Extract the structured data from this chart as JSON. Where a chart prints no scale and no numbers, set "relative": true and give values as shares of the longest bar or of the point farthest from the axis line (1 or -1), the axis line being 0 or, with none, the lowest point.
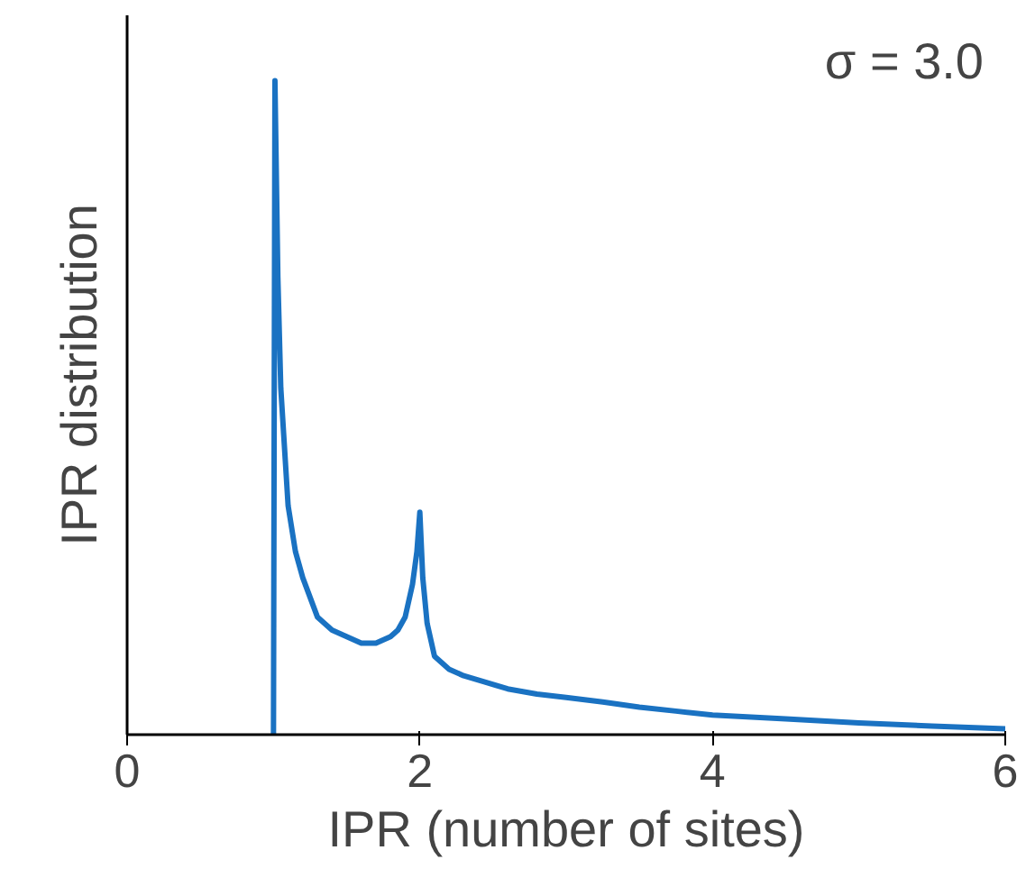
{
  "chart_data": {
    "type": "line",
    "xlabel": "IPR (number of sites)",
    "ylabel": "IPR distribution",
    "relative": true,
    "xlim": [
      0,
      6
    ],
    "xticks": [
      0,
      2,
      4,
      6
    ],
    "grid": false,
    "marker": "none",
    "line_style": "solid",
    "annotations": [
      "σ = 3.0"
    ],
    "series": [
      {
        "color": "#1a72c2",
        "x": [
          1.0,
          1.01,
          1.03,
          1.05,
          1.1,
          1.15,
          1.2,
          1.3,
          1.4,
          1.5,
          1.6,
          1.7,
          1.8,
          1.85,
          1.9,
          1.95,
          1.98,
          2.0,
          2.02,
          2.05,
          2.1,
          2.2,
          2.3,
          2.45,
          2.6,
          2.8,
          3.0,
          3.25,
          3.5,
          3.75,
          4.0,
          4.5,
          5.0,
          5.5,
          6.0
        ],
        "values": [
          0,
          1.0,
          0.7,
          0.53,
          0.35,
          0.28,
          0.24,
          0.18,
          0.16,
          0.15,
          0.14,
          0.14,
          0.15,
          0.16,
          0.18,
          0.23,
          0.28,
          0.34,
          0.24,
          0.17,
          0.12,
          0.1,
          0.09,
          0.08,
          0.07,
          0.062,
          0.057,
          0.05,
          0.042,
          0.036,
          0.03,
          0.024,
          0.018,
          0.013,
          0.009
        ]
      }
    ]
  }
}
